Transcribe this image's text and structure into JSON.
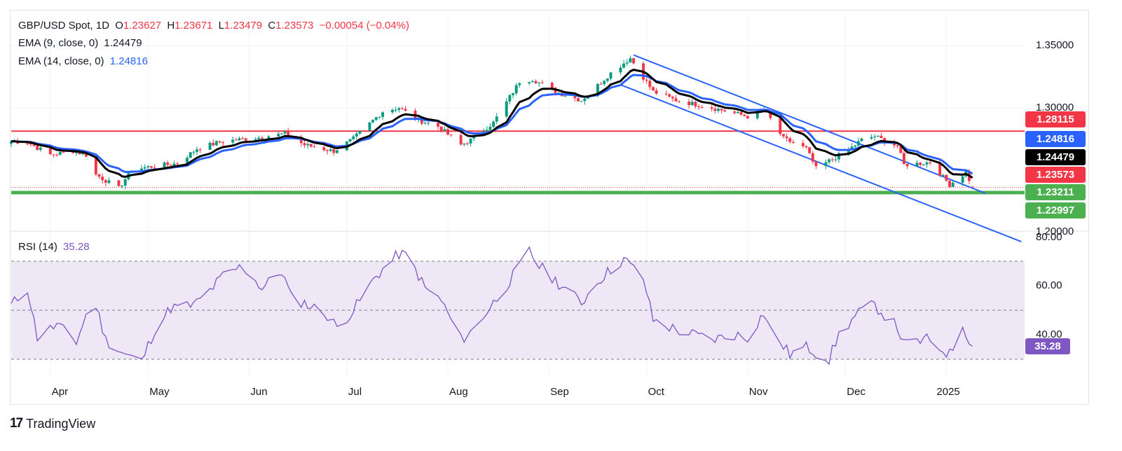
{
  "header": {
    "symbol": "GBP/USD Spot, 1D",
    "open_label": "O",
    "open": "1.23627",
    "high_label": "H",
    "high": "1.23671",
    "low_label": "L",
    "low": "1.23479",
    "close_label": "C",
    "close": "1.23573",
    "change": "−0.00054 (−0.04%)",
    "ema9_label": "EMA (9, close, 0)",
    "ema9_value": "1.24479",
    "ema14_label": "EMA (14, close, 0)",
    "ema14_value": "1.24816",
    "rsi_label": "RSI (14)",
    "rsi_value": "35.28"
  },
  "colors": {
    "up": "#089981",
    "down": "#f23645",
    "ema9": "#000000",
    "ema14": "#2962ff",
    "resistance": "#f23645",
    "support": "#4caf50",
    "channel": "#2962ff",
    "rsi": "#7e57c2",
    "rsi_band": "#ede7f6"
  },
  "tags": [
    {
      "text": "1.28115",
      "color": "#f23645"
    },
    {
      "text": "1.24816",
      "color": "#2962ff"
    },
    {
      "text": "1.24479",
      "color": "#000000"
    },
    {
      "text": "1.23573",
      "color": "#f23645"
    },
    {
      "text": "1.23211",
      "color": "#4caf50"
    },
    {
      "text": "1.22997",
      "color": "#4caf50"
    }
  ],
  "rsi_tag": {
    "text": "35.28",
    "color": "#7e57c2"
  },
  "footer": {
    "brand": "TradingView"
  },
  "chart_data": [
    {
      "type": "candlestick",
      "title": "GBP/USD Spot, 1D",
      "x_ticks": [
        "Apr",
        "May",
        "Jun",
        "Jul",
        "Aug",
        "Sep",
        "Oct",
        "Nov",
        "Dec",
        "2025"
      ],
      "y_ticks": [
        "1.35000",
        "1.30000",
        "1.20000"
      ],
      "ylim": [
        1.19,
        1.36
      ],
      "horizontal_levels": [
        {
          "name": "resistance",
          "value": 1.28115
        },
        {
          "name": "support",
          "value": 1.23211
        },
        {
          "name": "last_close",
          "value": 1.23573
        }
      ],
      "channel": {
        "upper": [
          [
            "Sep 27",
            1.3425
          ],
          [
            "Jan 13",
            1.231
          ]
        ],
        "lower": [
          [
            "Sep 23",
            1.3185
          ],
          [
            "Jan 24",
            1.192
          ]
        ]
      },
      "ohlc_keypoints": [
        [
          "Mar 20",
          1.273
        ],
        [
          "Mar 25",
          1.272
        ],
        [
          "Apr 1",
          1.262
        ],
        [
          "Apr 8",
          1.265
        ],
        [
          "Apr 12",
          1.262
        ],
        [
          "Apr 15",
          1.246
        ],
        [
          "Apr 22",
          1.235
        ],
        [
          "Apr 26",
          1.25
        ],
        [
          "May 3",
          1.253
        ],
        [
          "May 10",
          1.255
        ],
        [
          "May 16",
          1.267
        ],
        [
          "May 24",
          1.273
        ],
        [
          "Jun 4",
          1.276
        ],
        [
          "Jun 12",
          1.279
        ],
        [
          "Jun 18",
          1.27
        ],
        [
          "Jun 27",
          1.265
        ],
        [
          "Jul 3",
          1.275
        ],
        [
          "Jul 12",
          1.297
        ],
        [
          "Jul 17",
          1.3
        ],
        [
          "Jul 23",
          1.29
        ],
        [
          "Jul 29",
          1.285
        ],
        [
          "Aug 5",
          1.27
        ],
        [
          "Aug 8",
          1.274
        ],
        [
          "Aug 15",
          1.288
        ],
        [
          "Aug 23",
          1.321
        ],
        [
          "Aug 27",
          1.323
        ],
        [
          "Sep 4",
          1.312
        ],
        [
          "Sep 11",
          1.306
        ],
        [
          "Sep 16",
          1.318
        ],
        [
          "Sep 20",
          1.328
        ],
        [
          "Sep 26",
          1.34
        ],
        [
          "Oct 3",
          1.313
        ],
        [
          "Oct 10",
          1.306
        ],
        [
          "Oct 21",
          1.3
        ],
        [
          "Nov 1",
          1.293
        ],
        [
          "Nov 6",
          1.299
        ],
        [
          "Nov 12",
          1.275
        ],
        [
          "Nov 19",
          1.267
        ],
        [
          "Nov 22",
          1.251
        ],
        [
          "Dec 2",
          1.266
        ],
        [
          "Dec 6",
          1.274
        ],
        [
          "Dec 10",
          1.277
        ],
        [
          "Dec 17",
          1.269
        ],
        [
          "Dec 19",
          1.254
        ],
        [
          "Dec 27",
          1.256
        ],
        [
          "Jan 2",
          1.238
        ],
        [
          "Jan 7",
          1.248
        ],
        [
          "Jan 9",
          1.236
        ]
      ],
      "series": [
        {
          "name": "EMA (9, close, 0)",
          "last": 1.24479
        },
        {
          "name": "EMA (14, close, 0)",
          "last": 1.24816
        }
      ]
    },
    {
      "type": "line",
      "title": "RSI (14)",
      "y_ticks": [
        "80.00",
        "60.00",
        "40.00"
      ],
      "ylim": [
        24,
        82
      ],
      "bands": [
        30,
        50,
        70
      ],
      "values_keypoints": [
        [
          "Mar 20",
          52
        ],
        [
          "Mar 25",
          59
        ],
        [
          "Mar 28",
          39
        ],
        [
          "Apr 3",
          44
        ],
        [
          "Apr 9",
          37
        ],
        [
          "Apr 12",
          48
        ],
        [
          "Apr 15",
          52
        ],
        [
          "Apr 18",
          38
        ],
        [
          "Apr 24",
          32
        ],
        [
          "Apr 29",
          29
        ],
        [
          "May 3",
          42
        ],
        [
          "May 8",
          51
        ],
        [
          "May 15",
          52
        ],
        [
          "May 20",
          58
        ],
        [
          "May 24",
          64
        ],
        [
          "May 30",
          68
        ],
        [
          "Jun 5",
          59
        ],
        [
          "Jun 11",
          66
        ],
        [
          "Jun 14",
          55
        ],
        [
          "Jun 18",
          53
        ],
        [
          "Jun 25",
          48
        ],
        [
          "Jun 28",
          43
        ],
        [
          "Jul 3",
          50
        ],
        [
          "Jul 10",
          64
        ],
        [
          "Jul 17",
          73
        ],
        [
          "Jul 20",
          72
        ],
        [
          "Jul 25",
          59
        ],
        [
          "Jul 30",
          54
        ],
        [
          "Aug 5",
          38
        ],
        [
          "Aug 8",
          41
        ],
        [
          "Aug 15",
          53
        ],
        [
          "Aug 20",
          62
        ],
        [
          "Aug 26",
          74
        ],
        [
          "Aug 29",
          68
        ],
        [
          "Sep 4",
          61
        ],
        [
          "Sep 11",
          53
        ],
        [
          "Sep 16",
          62
        ],
        [
          "Sep 24",
          71
        ],
        [
          "Sep 30",
          63
        ],
        [
          "Oct 3",
          46
        ],
        [
          "Oct 10",
          42
        ],
        [
          "Oct 21",
          38
        ],
        [
          "Oct 28",
          40
        ],
        [
          "Nov 1",
          39
        ],
        [
          "Nov 6",
          49
        ],
        [
          "Nov 8",
          42
        ],
        [
          "Nov 14",
          32
        ],
        [
          "Nov 19",
          35
        ],
        [
          "Nov 26",
          30
        ],
        [
          "Nov 29",
          40
        ],
        [
          "Dec 3",
          46
        ],
        [
          "Dec 6",
          50
        ],
        [
          "Dec 10",
          52
        ],
        [
          "Dec 17",
          43
        ],
        [
          "Dec 19",
          36
        ],
        [
          "Dec 26",
          38
        ],
        [
          "Jan 2",
          32
        ],
        [
          "Jan 6",
          44
        ],
        [
          "Jan 9",
          35.28
        ]
      ]
    }
  ]
}
